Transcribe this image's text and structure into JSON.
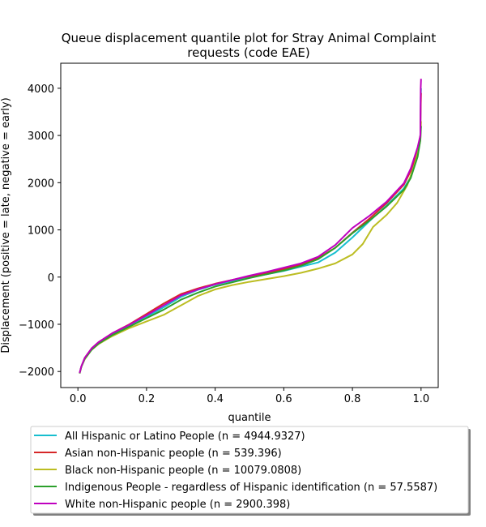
{
  "chart_data": {
    "type": "line",
    "title_lines": [
      "Queue displacement quantile plot for Stray Animal Complaint",
      "requests (code EAE)"
    ],
    "xlabel": "quantile",
    "ylabel": "Displacement (positive = late, negative = early)",
    "xlim": [
      -0.05,
      1.05
    ],
    "ylim": [
      -2340,
      4530
    ],
    "xticks": [
      0.0,
      0.2,
      0.4,
      0.6,
      0.8,
      1.0
    ],
    "xtick_labels": [
      "0.0",
      "0.2",
      "0.4",
      "0.6",
      "0.8",
      "1.0"
    ],
    "yticks": [
      -2000,
      -1000,
      0,
      1000,
      2000,
      3000,
      4000
    ],
    "ytick_labels": [
      "−2000",
      "−1000",
      "0",
      "1000",
      "2000",
      "3000",
      "4000"
    ],
    "grid": false,
    "legend_position": "below",
    "series": [
      {
        "name": "All Hispanic or Latino People (n = 4944.9327)",
        "color": "#17becf",
        "points": [
          [
            0.005,
            -2040
          ],
          [
            0.01,
            -1900
          ],
          [
            0.02,
            -1720
          ],
          [
            0.04,
            -1520
          ],
          [
            0.06,
            -1390
          ],
          [
            0.1,
            -1210
          ],
          [
            0.15,
            -1020
          ],
          [
            0.2,
            -840
          ],
          [
            0.25,
            -640
          ],
          [
            0.3,
            -420
          ],
          [
            0.35,
            -270
          ],
          [
            0.4,
            -160
          ],
          [
            0.45,
            -80
          ],
          [
            0.5,
            0
          ],
          [
            0.55,
            60
          ],
          [
            0.6,
            130
          ],
          [
            0.65,
            220
          ],
          [
            0.7,
            310
          ],
          [
            0.75,
            520
          ],
          [
            0.8,
            840
          ],
          [
            0.85,
            1190
          ],
          [
            0.9,
            1520
          ],
          [
            0.95,
            1880
          ],
          [
            0.97,
            2120
          ],
          [
            0.99,
            2620
          ],
          [
            0.998,
            3000
          ],
          [
            0.999,
            3800
          ],
          [
            1.0,
            4000
          ]
        ]
      },
      {
        "name": "Asian non-Hispanic people (n = 539.396)",
        "color": "#d62728",
        "points": [
          [
            0.005,
            -2040
          ],
          [
            0.01,
            -1900
          ],
          [
            0.02,
            -1710
          ],
          [
            0.04,
            -1510
          ],
          [
            0.06,
            -1380
          ],
          [
            0.1,
            -1190
          ],
          [
            0.15,
            -1000
          ],
          [
            0.2,
            -780
          ],
          [
            0.25,
            -560
          ],
          [
            0.3,
            -360
          ],
          [
            0.35,
            -240
          ],
          [
            0.4,
            -140
          ],
          [
            0.45,
            -60
          ],
          [
            0.5,
            20
          ],
          [
            0.55,
            90
          ],
          [
            0.6,
            170
          ],
          [
            0.65,
            260
          ],
          [
            0.7,
            400
          ],
          [
            0.75,
            620
          ],
          [
            0.8,
            940
          ],
          [
            0.85,
            1240
          ],
          [
            0.9,
            1570
          ],
          [
            0.95,
            1960
          ],
          [
            0.97,
            2250
          ],
          [
            0.99,
            2680
          ],
          [
            0.998,
            3000
          ],
          [
            0.999,
            3600
          ],
          [
            1.0,
            3900
          ]
        ]
      },
      {
        "name": "Black non-Hispanic people (n = 10079.0808)",
        "color": "#bcbd22",
        "points": [
          [
            0.005,
            -2040
          ],
          [
            0.01,
            -1900
          ],
          [
            0.02,
            -1740
          ],
          [
            0.04,
            -1540
          ],
          [
            0.06,
            -1420
          ],
          [
            0.1,
            -1250
          ],
          [
            0.15,
            -1080
          ],
          [
            0.2,
            -940
          ],
          [
            0.25,
            -800
          ],
          [
            0.3,
            -600
          ],
          [
            0.35,
            -400
          ],
          [
            0.4,
            -260
          ],
          [
            0.45,
            -170
          ],
          [
            0.5,
            -100
          ],
          [
            0.55,
            -40
          ],
          [
            0.6,
            20
          ],
          [
            0.65,
            90
          ],
          [
            0.7,
            180
          ],
          [
            0.75,
            290
          ],
          [
            0.8,
            480
          ],
          [
            0.83,
            700
          ],
          [
            0.86,
            1060
          ],
          [
            0.9,
            1320
          ],
          [
            0.93,
            1570
          ],
          [
            0.96,
            1950
          ],
          [
            0.98,
            2350
          ],
          [
            0.99,
            2620
          ],
          [
            0.998,
            2900
          ],
          [
            1.0,
            3300
          ]
        ]
      },
      {
        "name": "Indigenous People - regardless of Hispanic identification (n = 57.5587)",
        "color": "#2ca02c",
        "points": [
          [
            0.005,
            -2040
          ],
          [
            0.01,
            -1900
          ],
          [
            0.02,
            -1730
          ],
          [
            0.04,
            -1540
          ],
          [
            0.06,
            -1410
          ],
          [
            0.1,
            -1230
          ],
          [
            0.15,
            -1050
          ],
          [
            0.2,
            -870
          ],
          [
            0.25,
            -690
          ],
          [
            0.3,
            -480
          ],
          [
            0.35,
            -330
          ],
          [
            0.4,
            -200
          ],
          [
            0.45,
            -110
          ],
          [
            0.5,
            -20
          ],
          [
            0.55,
            60
          ],
          [
            0.6,
            140
          ],
          [
            0.65,
            240
          ],
          [
            0.7,
            380
          ],
          [
            0.75,
            620
          ],
          [
            0.8,
            930
          ],
          [
            0.85,
            1200
          ],
          [
            0.9,
            1500
          ],
          [
            0.95,
            1850
          ],
          [
            0.97,
            2100
          ],
          [
            0.99,
            2550
          ],
          [
            0.998,
            2900
          ],
          [
            1.0,
            3200
          ]
        ]
      },
      {
        "name": "White non-Hispanic people (n = 2900.398)",
        "color": "#bf00bf",
        "points": [
          [
            0.005,
            -2030
          ],
          [
            0.01,
            -1890
          ],
          [
            0.02,
            -1710
          ],
          [
            0.04,
            -1510
          ],
          [
            0.06,
            -1380
          ],
          [
            0.1,
            -1190
          ],
          [
            0.15,
            -1010
          ],
          [
            0.2,
            -810
          ],
          [
            0.25,
            -600
          ],
          [
            0.3,
            -390
          ],
          [
            0.35,
            -260
          ],
          [
            0.4,
            -150
          ],
          [
            0.45,
            -60
          ],
          [
            0.5,
            30
          ],
          [
            0.55,
            110
          ],
          [
            0.6,
            200
          ],
          [
            0.65,
            290
          ],
          [
            0.7,
            430
          ],
          [
            0.75,
            680
          ],
          [
            0.8,
            1040
          ],
          [
            0.85,
            1300
          ],
          [
            0.9,
            1600
          ],
          [
            0.95,
            1990
          ],
          [
            0.97,
            2300
          ],
          [
            0.99,
            2750
          ],
          [
            0.998,
            3000
          ],
          [
            0.999,
            4000
          ],
          [
            1.0,
            4200
          ]
        ]
      }
    ]
  }
}
